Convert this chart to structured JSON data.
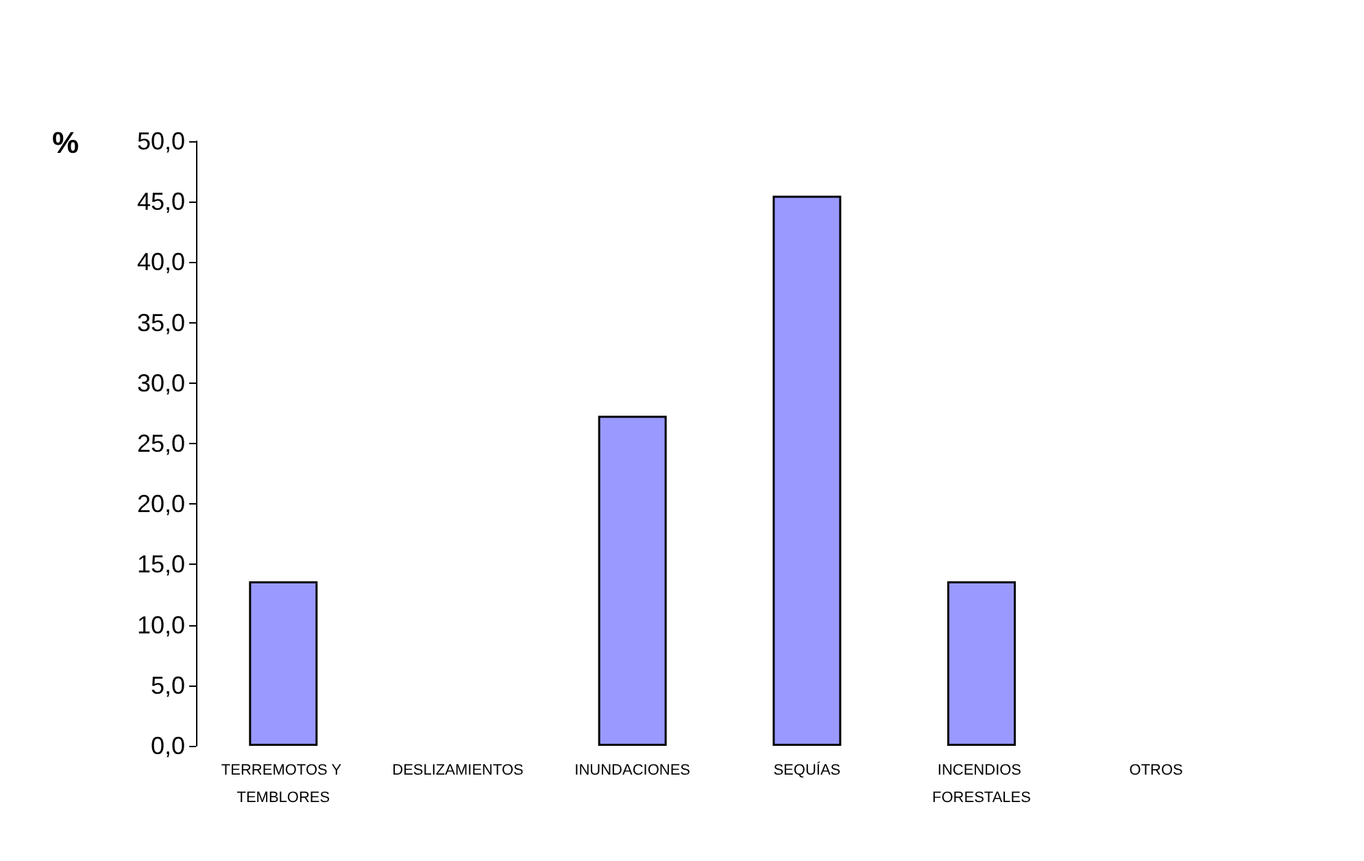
{
  "chart_data": {
    "type": "bar",
    "ylabel": "%",
    "categories": [
      "TERREMOTOS Y TEMBLORES",
      "DESLIZAMIENTOS",
      "INUNDACIONES",
      "SEQUÍAS",
      "INCENDIOS FORESTALES",
      "OTROS"
    ],
    "values": [
      13.6,
      0,
      27.3,
      45.5,
      13.6,
      0
    ],
    "color": "#9999ff",
    "ylim": [
      0,
      50
    ],
    "yticks": [
      {
        "value": 0,
        "label": "0,0"
      },
      {
        "value": 5,
        "label": "5,0"
      },
      {
        "value": 10,
        "label": "10,0"
      },
      {
        "value": 15,
        "label": "15,0"
      },
      {
        "value": 20,
        "label": "20,0"
      },
      {
        "value": 25,
        "label": "25,0"
      },
      {
        "value": 30,
        "label": "30,0"
      },
      {
        "value": 35,
        "label": "35,0"
      },
      {
        "value": 40,
        "label": "40,0"
      },
      {
        "value": 45,
        "label": "45,0"
      },
      {
        "value": 50,
        "label": "50,0"
      }
    ],
    "grid": false
  }
}
